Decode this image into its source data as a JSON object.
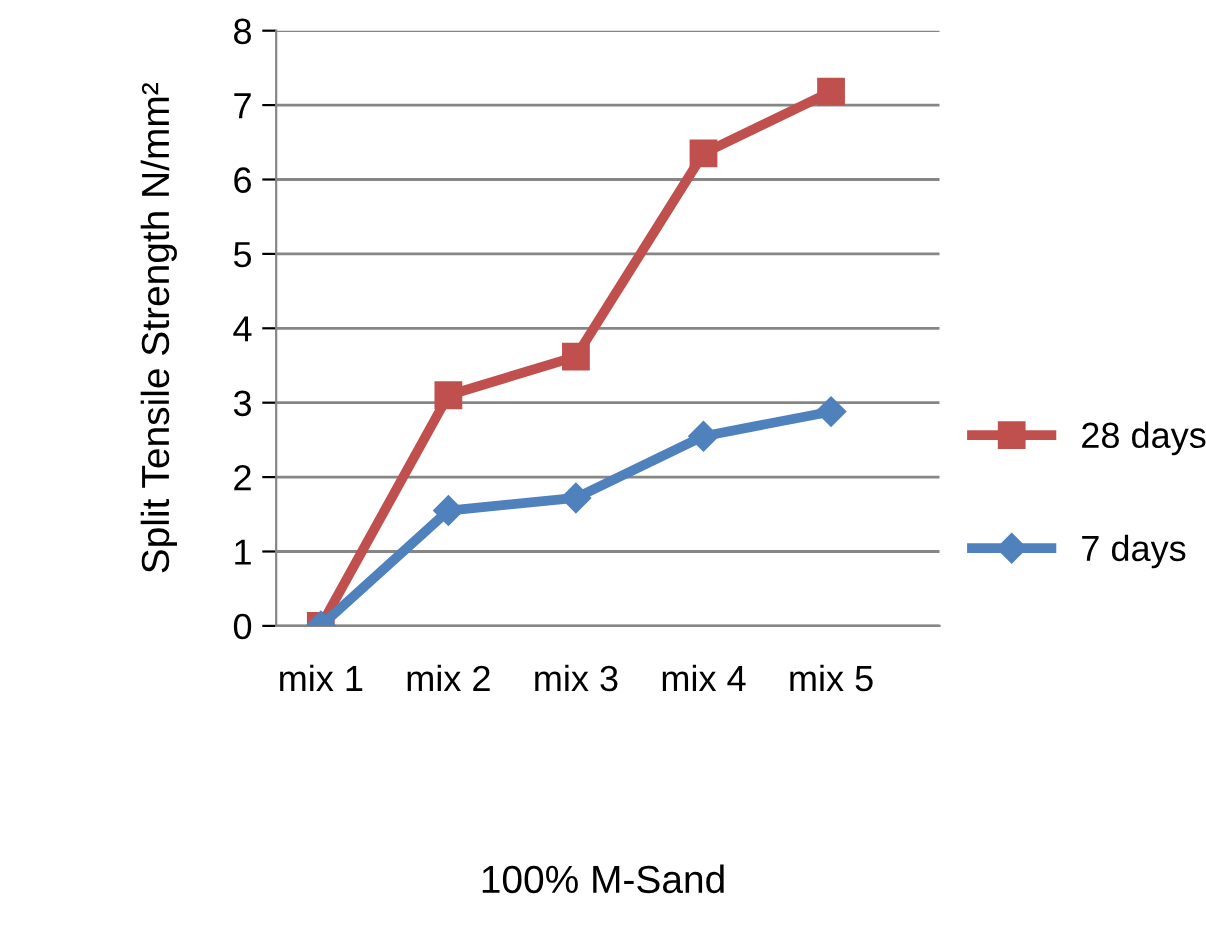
{
  "chart_data": {
    "type": "line",
    "xlabel": "100% M-Sand",
    "ylabel": "Split Tensile Strength N/mm²",
    "categories": [
      "mix 1",
      "mix 2",
      "mix 3",
      "mix 4",
      "mix 5"
    ],
    "series": [
      {
        "name": "28 days",
        "color": "#c0504d",
        "marker": "square",
        "values": [
          0,
          3.1,
          3.62,
          6.35,
          7.18
        ]
      },
      {
        "name": "7 days",
        "color": "#4f81bd",
        "marker": "diamond",
        "values": [
          0,
          1.55,
          1.72,
          2.55,
          2.88
        ]
      }
    ],
    "ylim": [
      0,
      8
    ],
    "yticks": [
      0,
      1,
      2,
      3,
      4,
      5,
      6,
      7,
      8
    ],
    "grid": "y",
    "legend": "right"
  }
}
